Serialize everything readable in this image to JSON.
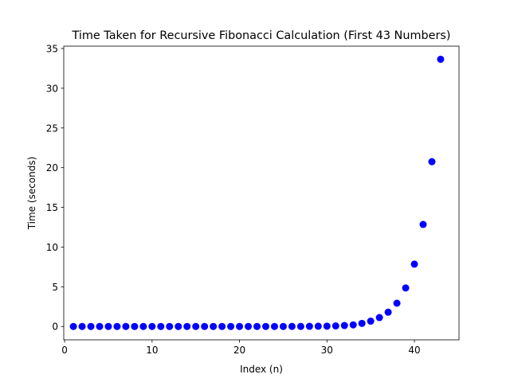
{
  "chart_data": {
    "type": "scatter",
    "title": "Time Taken for Recursive Fibonacci Calculation (First 43 Numbers)",
    "xlabel": "Index (n)",
    "ylabel": "Time (seconds)",
    "xlim": [
      -0.1,
      45.1
    ],
    "ylim": [
      -1.68,
      35.3
    ],
    "xticks": [
      0,
      10,
      20,
      30,
      40
    ],
    "yticks": [
      0,
      5,
      10,
      15,
      20,
      25,
      30,
      35
    ],
    "grid": false,
    "legend": "none",
    "marker_color": "#0000ff",
    "series": [
      {
        "x": [
          1,
          2,
          3,
          4,
          5,
          6,
          7,
          8,
          9,
          10,
          11,
          12,
          13,
          14,
          15,
          16,
          17,
          18,
          19,
          20,
          21,
          22,
          23,
          24,
          25,
          26,
          27,
          28,
          29,
          30,
          31,
          32,
          33,
          34,
          35,
          36,
          37,
          38,
          39,
          40,
          41,
          42,
          43
        ],
        "y": [
          0,
          0,
          0,
          0,
          0,
          0,
          0,
          0,
          0,
          0,
          0,
          0,
          0,
          0,
          0,
          0,
          0,
          0,
          0,
          0,
          0,
          0,
          0,
          0,
          0,
          0.01,
          0.01,
          0.02,
          0.03,
          0.04,
          0.07,
          0.12,
          0.2,
          0.39,
          0.67,
          1.12,
          1.8,
          2.93,
          4.85,
          7.85,
          12.85,
          20.75,
          33.65
        ]
      }
    ]
  }
}
